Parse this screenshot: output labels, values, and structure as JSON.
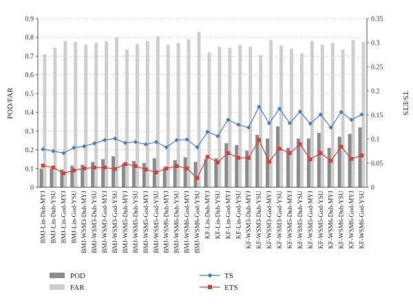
{
  "chart_data": {
    "type": "bar+line",
    "categories": [
      "BMJ-Lin-Duh-MYJ",
      "BMJ-Lin-Duh-YSU",
      "BMJ-Lin-God-MYJ",
      "BMJ-Lin-God-YSU",
      "BMJ-WSM3-Duh-MYJ",
      "BMJ-WSM3-Duh-YSU",
      "BMJ-WSM3-God-MYJ",
      "BMJ-WSM3-God-YSU",
      "BMJ-WSM5-Duh-MYJ",
      "BMJ-WSM5-Duh-YSU",
      "BMJ-WSM5-God-MYJ",
      "BMJ-WSM5-God-YSU",
      "BMJ-WSM6-Duh-MYJ",
      "BMJ-WSM6-Duh-YSU",
      "BMJ-WSM6-God-MYJ",
      "BMJ-WSM6-God-YSU",
      "KF-Lin-Duh-MYJ",
      "KF-Lin-Duh-YSU",
      "KF-Lin-God-MYJ",
      "KF-Lin-God-YSU",
      "KF-WSM3-Duh-MYJ",
      "KF-WSM3-Duh-YSU",
      "KF-WSM3-God-MYJ",
      "KF-WSM3-God-YSU",
      "KF-WSM5-Duh-MYJ",
      "KF-WSM5-Duh-YSU",
      "KF-WSM5-God-MYJ",
      "KF-WSM5-God-YSU",
      "KF-WSM6-Duh-MYJ",
      "KF-WSM6-Duh-YSU",
      "KF-WSM6-God-MYJ",
      "KF-WSM6-God-YSU"
    ],
    "series": [
      {
        "name": "POD",
        "kind": "bar",
        "axis": "left",
        "color": "#8c8c8c",
        "values": [
          0.1,
          0.1,
          0.095,
          0.115,
          0.12,
          0.135,
          0.15,
          0.165,
          0.125,
          0.14,
          0.13,
          0.155,
          0.105,
          0.145,
          0.16,
          0.135,
          0.15,
          0.155,
          0.235,
          0.225,
          0.195,
          0.28,
          0.26,
          0.325,
          0.21,
          0.26,
          0.26,
          0.29,
          0.21,
          0.27,
          0.285,
          0.32
        ]
      },
      {
        "name": "FAR",
        "kind": "bar",
        "axis": "left",
        "color": "#cfcfcf",
        "values": [
          0.71,
          0.745,
          0.78,
          0.775,
          0.76,
          0.77,
          0.78,
          0.8,
          0.735,
          0.765,
          0.78,
          0.805,
          0.76,
          0.77,
          0.79,
          0.83,
          0.72,
          0.75,
          0.745,
          0.76,
          0.75,
          0.705,
          0.785,
          0.755,
          0.74,
          0.715,
          0.78,
          0.76,
          0.77,
          0.735,
          0.785,
          0.775
        ]
      },
      {
        "name": "TS",
        "kind": "line",
        "axis": "right",
        "color": "#4a7ec7",
        "marker": "diamond",
        "values": [
          0.079,
          0.075,
          0.071,
          0.082,
          0.085,
          0.091,
          0.098,
          0.101,
          0.092,
          0.094,
          0.089,
          0.094,
          0.083,
          0.098,
          0.099,
          0.083,
          0.115,
          0.106,
          0.14,
          0.13,
          0.124,
          0.167,
          0.133,
          0.163,
          0.133,
          0.157,
          0.132,
          0.151,
          0.124,
          0.156,
          0.14,
          0.151
        ]
      },
      {
        "name": "ETS",
        "kind": "line",
        "axis": "right",
        "color": "#d0433a",
        "marker": "square",
        "values": [
          0.045,
          0.041,
          0.029,
          0.035,
          0.039,
          0.041,
          0.041,
          0.038,
          0.048,
          0.044,
          0.037,
          0.031,
          0.039,
          0.044,
          0.039,
          0.019,
          0.063,
          0.052,
          0.071,
          0.061,
          0.061,
          0.098,
          0.053,
          0.08,
          0.071,
          0.089,
          0.058,
          0.071,
          0.055,
          0.084,
          0.059,
          0.066
        ]
      }
    ],
    "ylabel_left": "POD/FAR",
    "ylabel_right": "TS/ETS",
    "ylim_left": [
      0,
      0.9
    ],
    "yticks_left": [
      0,
      0.1,
      0.2,
      0.3,
      0.4,
      0.5,
      0.6,
      0.7,
      0.8,
      0.9
    ],
    "ylim_right": [
      0,
      0.35
    ],
    "yticks_right": [
      0,
      0.05,
      0.1,
      0.15,
      0.2,
      0.25,
      0.3,
      0.35
    ],
    "grid": "horizontal-dotted",
    "legend": [
      {
        "label": "POD",
        "symbol": "bar",
        "color": "#8c8c8c"
      },
      {
        "label": "FAR",
        "symbol": "bar",
        "color": "#cfcfcf"
      },
      {
        "label": "TS",
        "symbol": "line-diamond",
        "color": "#4a7ec7"
      },
      {
        "label": "ETS",
        "symbol": "line-square",
        "color": "#d0433a"
      }
    ],
    "legend_position": "bottom"
  }
}
